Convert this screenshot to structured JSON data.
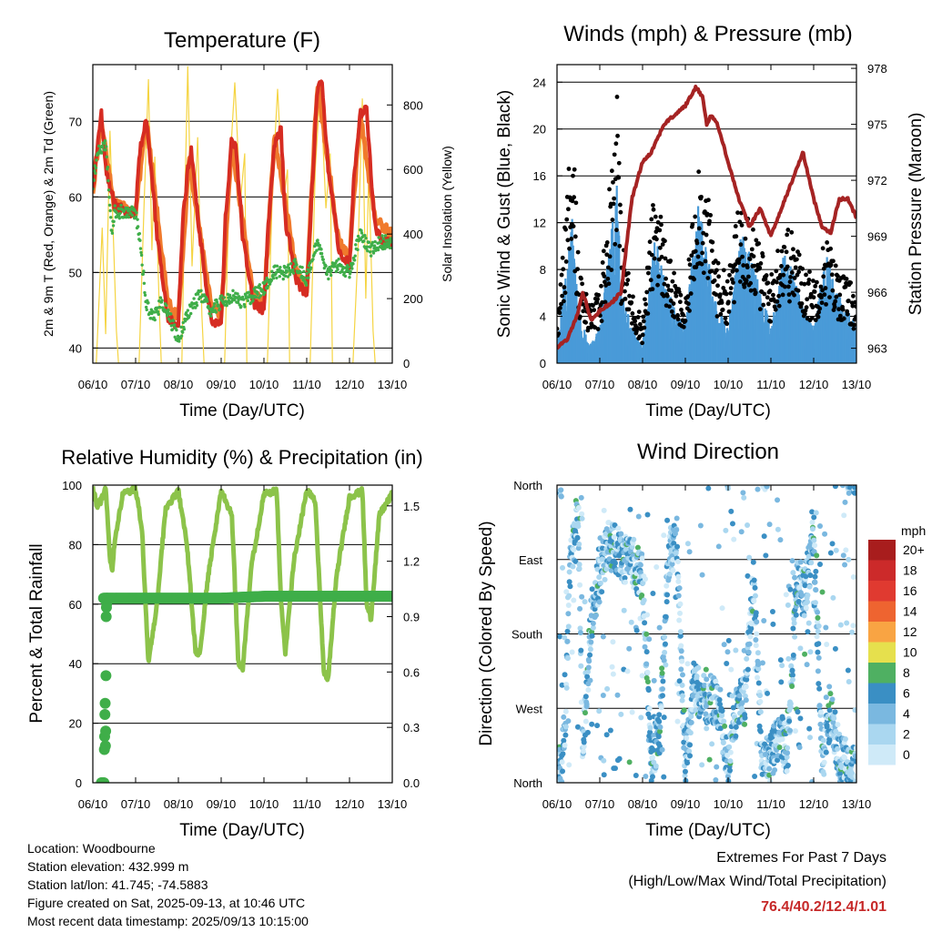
{
  "footer": {
    "location": "Location: Woodbourne",
    "elevation": "Station elevation: 432.999 m",
    "latlon": "Station lat/lon: 41.745; -74.5883",
    "created": "Figure created on Sat, 2025-09-13, at 10:46 UTC",
    "timestamp": "Most recent data timestamp: 2025/09/13 10:15:00"
  },
  "extremes": {
    "title": "Extremes For Past 7 Days",
    "subtitle": "(High/Low/Max Wind/Total Precipitation)",
    "values": "76.4/40.2/12.4/1.01",
    "color": "#c62828"
  },
  "chart_data": [
    {
      "type": "line",
      "title": "Temperature (F)",
      "xlabel": "Time (Day/UTC)",
      "ylabel": "2m & 9m T (Red, Orange) & 2m Td (Green)",
      "y2label": "Solar Insolation (Yellow)",
      "xticks": [
        "06/10",
        "07/10",
        "08/10",
        "09/10",
        "10/10",
        "11/10",
        "12/10",
        "13/10"
      ],
      "ylim": [
        38,
        77.5
      ],
      "yticks": [
        40,
        50,
        60,
        70
      ],
      "y2lim": [
        0,
        925
      ],
      "y2ticks": [
        0,
        200,
        400,
        600,
        800
      ],
      "grid": true,
      "series": [
        {
          "role": "2m T",
          "color": "#d62c22",
          "x": [
            0,
            0.1,
            0.2,
            0.3,
            0.5,
            0.8,
            1.0,
            1.1,
            1.25,
            1.5,
            1.75,
            2.0,
            2.1,
            2.25,
            2.3,
            2.5,
            2.75,
            3.0,
            3.1,
            3.25,
            3.35,
            3.5,
            3.75,
            4.0,
            4.1,
            4.25,
            4.4,
            4.5,
            4.75,
            5.0,
            5.1,
            5.25,
            5.35,
            5.5,
            5.75,
            6.0,
            6.1,
            6.25,
            6.4,
            6.5,
            6.6,
            6.75,
            7.0
          ],
          "y": [
            61,
            66,
            71,
            64,
            59,
            58,
            58,
            66,
            71,
            55,
            44,
            43,
            57,
            65,
            66,
            55,
            44,
            43,
            57,
            68,
            66,
            55,
            46,
            45,
            56,
            67,
            69,
            57,
            49,
            47,
            59,
            74,
            76,
            64,
            53,
            51,
            62,
            71,
            72,
            63,
            56,
            54,
            54
          ]
        },
        {
          "role": "9m T",
          "color": "#f07a2c",
          "x": [
            0,
            0.2,
            0.5,
            1.0,
            1.25,
            1.75,
            2.0,
            2.25,
            2.75,
            3.0,
            3.25,
            3.75,
            4.0,
            4.25,
            4.75,
            5.0,
            5.25,
            5.75,
            6.0,
            6.25,
            6.6,
            7.0
          ],
          "y": [
            61,
            70,
            59,
            58,
            70,
            46,
            44,
            65,
            46,
            44,
            67,
            47,
            46,
            68,
            50,
            48,
            75,
            54,
            52,
            71,
            57,
            55
          ]
        },
        {
          "role": "2m Td",
          "color": "#3fae49",
          "x": [
            0,
            0.1,
            0.3,
            0.45,
            0.5,
            0.8,
            1.0,
            1.1,
            1.25,
            1.4,
            1.6,
            1.8,
            2.0,
            2.25,
            2.5,
            2.75,
            3.0,
            3.25,
            3.5,
            3.75,
            4.0,
            4.25,
            4.5,
            4.75,
            5.0,
            5.25,
            5.5,
            5.75,
            6.0,
            6.25,
            6.5,
            6.75,
            7.0
          ],
          "y": [
            61,
            66,
            67,
            55,
            58,
            58,
            58,
            54,
            46,
            44,
            46,
            44,
            41,
            45,
            47,
            45,
            46,
            47,
            46,
            47,
            48,
            50,
            50,
            51,
            49,
            54,
            50,
            51,
            50,
            55,
            53,
            54,
            54
          ]
        },
        {
          "role": "solar",
          "axis": "y2",
          "color": "#f5d442",
          "x": [
            0.08,
            0.22,
            0.3,
            0.4,
            0.55,
            0.6,
            1.08,
            1.2,
            1.3,
            1.38,
            1.45,
            1.55,
            1.6,
            2.08,
            2.15,
            2.22,
            2.32,
            2.45,
            2.55,
            2.6,
            3.08,
            3.2,
            3.32,
            3.45,
            3.55,
            3.6,
            4.08,
            4.2,
            4.32,
            4.45,
            4.55,
            4.6,
            5.08,
            5.2,
            5.32,
            5.45,
            5.55,
            5.6,
            6.08,
            6.2,
            6.3,
            6.38,
            6.45,
            6.55,
            6.6
          ],
          "y": [
            0,
            420,
            90,
            720,
            100,
            0,
            0,
            500,
            880,
            350,
            640,
            180,
            0,
            0,
            500,
            920,
            300,
            700,
            150,
            0,
            0,
            600,
            870,
            500,
            650,
            0,
            0,
            550,
            850,
            500,
            600,
            0,
            0,
            600,
            860,
            480,
            650,
            0,
            0,
            350,
            820,
            200,
            600,
            100,
            0
          ]
        }
      ]
    },
    {
      "type": "scatter",
      "title": "Winds (mph) & Pressure (mb)",
      "xlabel": "Time (Day/UTC)",
      "ylabel": "Sonic Wind & Gust (Blue, Black)",
      "y2label": "Station Pressure (Maroon)",
      "xticks": [
        "06/10",
        "07/10",
        "08/10",
        "09/10",
        "10/10",
        "11/10",
        "12/10",
        "13/10"
      ],
      "ylim": [
        0,
        25.5
      ],
      "yticks": [
        0,
        4,
        8,
        12,
        16,
        20,
        24
      ],
      "y2lim": [
        962.2,
        978.2
      ],
      "y2ticks": [
        963,
        966,
        969,
        972,
        975,
        978
      ],
      "grid": true,
      "series": [
        {
          "role": "gust",
          "color": "#000000",
          "x": [
            0,
            0.25,
            0.35,
            0.5,
            0.75,
            1.0,
            1.3,
            1.4,
            1.5,
            1.75,
            2.0,
            2.3,
            2.5,
            2.75,
            3.0,
            3.3,
            3.5,
            3.75,
            4.0,
            4.3,
            4.5,
            4.75,
            5.0,
            5.3,
            5.5,
            5.75,
            6.0,
            6.3,
            6.5,
            6.75,
            7.0
          ],
          "y": [
            3,
            12,
            19,
            7,
            4,
            5,
            15,
            21,
            9,
            5,
            3,
            13,
            9,
            6,
            4,
            15,
            12,
            7,
            6,
            12,
            11,
            8,
            6,
            10,
            9,
            7,
            6,
            9,
            7,
            6,
            5
          ]
        },
        {
          "role": "wind",
          "color": "#4a9bd8",
          "x": [
            0,
            0.25,
            0.35,
            0.5,
            0.75,
            1.0,
            1.3,
            1.4,
            1.5,
            1.75,
            2.0,
            2.3,
            2.5,
            2.75,
            3.0,
            3.3,
            3.5,
            3.75,
            4.0,
            4.3,
            4.5,
            4.75,
            5.0,
            5.3,
            5.5,
            5.75,
            6.0,
            6.3,
            6.5,
            6.75,
            7.0
          ],
          "y": [
            1,
            6,
            8,
            3,
            1,
            2,
            8,
            10,
            4,
            2,
            1,
            7,
            5,
            3,
            2,
            9,
            6,
            3,
            2,
            7,
            6,
            4,
            2,
            6,
            5,
            3,
            2,
            6,
            4,
            3,
            2
          ]
        },
        {
          "role": "pressure",
          "axis": "y2",
          "color": "#a52323",
          "x": [
            0,
            0.25,
            0.5,
            0.6,
            0.8,
            1.0,
            1.3,
            1.5,
            1.75,
            2.0,
            2.2,
            2.5,
            2.75,
            3.0,
            3.25,
            3.4,
            3.5,
            3.6,
            3.75,
            4.0,
            4.25,
            4.5,
            4.75,
            5.0,
            5.25,
            5.5,
            5.75,
            6.0,
            6.2,
            6.4,
            6.6,
            6.8,
            7.0
          ],
          "y": [
            963,
            963.5,
            965,
            966,
            964.5,
            965,
            965.5,
            966,
            971,
            973,
            973.5,
            975,
            975.5,
            976,
            977,
            976.5,
            975,
            975.5,
            975,
            973,
            971,
            969.5,
            970.5,
            969,
            970.5,
            972,
            973.5,
            971,
            969.5,
            969.2,
            971,
            971,
            970
          ]
        }
      ]
    },
    {
      "type": "line",
      "title": "Relative Humidity (%) & Precipitation (in)",
      "xlabel": "Time (Day/UTC)",
      "ylabel": "Percent & Total Rainfall",
      "xticks": [
        "06/10",
        "07/10",
        "08/10",
        "09/10",
        "10/10",
        "11/10",
        "12/10",
        "13/10"
      ],
      "ylim": [
        0,
        100
      ],
      "yticks": [
        0,
        20,
        40,
        60,
        80,
        100
      ],
      "y2lim": [
        0,
        1.6125
      ],
      "y2ticks": [
        "0.0",
        "0.3",
        "0.6",
        "0.9",
        "1.2",
        "1.5"
      ],
      "grid": true,
      "series": [
        {
          "role": "RH",
          "color": "#8cc34a",
          "x": [
            0,
            0.1,
            0.2,
            0.3,
            0.4,
            0.45,
            0.5,
            0.7,
            0.9,
            1.0,
            1.15,
            1.3,
            1.5,
            1.7,
            2.0,
            2.2,
            2.4,
            2.5,
            2.7,
            3.0,
            3.25,
            3.4,
            3.5,
            3.7,
            4.0,
            4.3,
            4.4,
            4.5,
            4.7,
            5.0,
            5.2,
            5.4,
            5.5,
            5.7,
            6.0,
            6.3,
            6.4,
            6.5,
            6.7,
            7.0
          ],
          "y": [
            99,
            93,
            95,
            99,
            75,
            71,
            80,
            97,
            98,
            99,
            85,
            40,
            60,
            92,
            98,
            80,
            44,
            43,
            70,
            98,
            90,
            41,
            38,
            72,
            97,
            98,
            60,
            44,
            75,
            98,
            95,
            37,
            35,
            70,
            96,
            98,
            60,
            55,
            90,
            97
          ]
        },
        {
          "role": "rain",
          "axis": "y2",
          "color": "#3fae49",
          "x": [
            0,
            0.05,
            0.1,
            0.15,
            0.2,
            0.25,
            0.3,
            0.5,
            1.0,
            2.0,
            3.0,
            4.0,
            5.0,
            6.0,
            7.0
          ],
          "y": [
            0,
            0,
            0,
            0,
            1.0,
            1.0,
            1.0,
            1.0,
            1.0,
            1.0,
            1.0,
            1.01,
            1.01,
            1.01,
            1.01
          ]
        }
      ]
    },
    {
      "type": "scatter",
      "title": "Wind Direction",
      "xlabel": "Time (Day/UTC)",
      "ylabel": "Direction (Colored By Speed)",
      "xticks": [
        "06/10",
        "07/10",
        "08/10",
        "09/10",
        "10/10",
        "11/10",
        "12/10",
        "13/10"
      ],
      "yticks": [
        "North",
        "West",
        "South",
        "East",
        "North"
      ],
      "ylim": [
        360,
        0
      ],
      "legend": {
        "title": "mph",
        "labels": [
          "20+",
          "18",
          "16",
          "14",
          "12",
          "10",
          "8",
          "6",
          "4",
          "2",
          "0"
        ],
        "colors": [
          "#a81d1d",
          "#cc2a2a",
          "#e03a30",
          "#ee6430",
          "#f9a443",
          "#e6e04d",
          "#4fb062",
          "#3a8fc4",
          "#7ab8e0",
          "#aad7f0",
          "#cfeaf8"
        ]
      },
      "series": [
        {
          "role": "direction",
          "x": [
            0.1,
            0.2,
            0.3,
            0.4,
            0.5,
            0.6,
            0.8,
            1.0,
            1.2,
            1.4,
            1.6,
            1.8,
            2.0,
            2.2,
            2.4,
            2.6,
            2.8,
            3.0,
            3.2,
            3.4,
            3.6,
            3.8,
            4.0,
            4.2,
            4.4,
            4.6,
            4.8,
            5.0,
            5.2,
            5.4,
            5.6,
            5.8,
            6.0,
            6.2,
            6.4,
            6.6,
            6.8
          ],
          "y": [
            15,
            80,
            260,
            300,
            330,
            30,
            200,
            250,
            290,
            280,
            270,
            260,
            250,
            30,
            60,
            270,
            300,
            20,
            120,
            100,
            100,
            90,
            20,
            90,
            100,
            250,
            20,
            30,
            60,
            40,
            240,
            230,
            300,
            20,
            90,
            30,
            20
          ]
        }
      ]
    }
  ]
}
